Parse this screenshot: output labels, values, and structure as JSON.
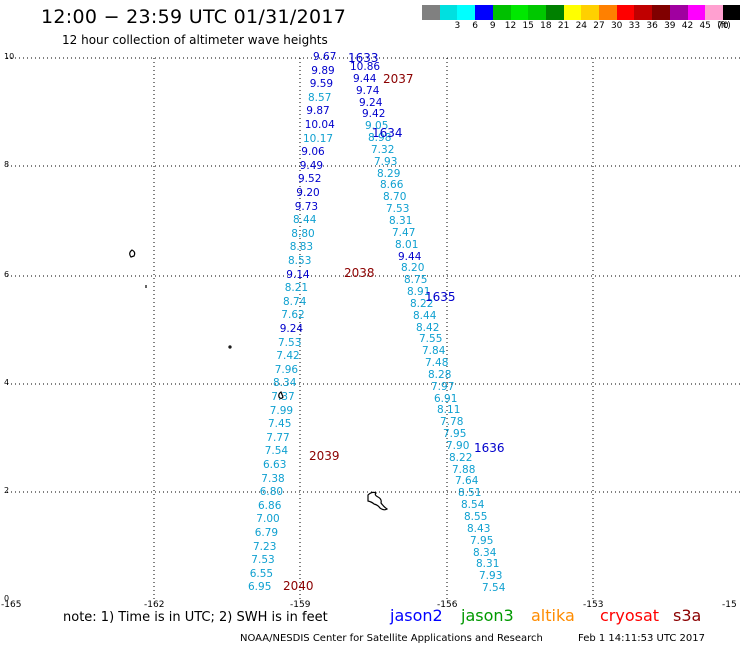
{
  "header": {
    "title": "12:00 − 23:59 UTC 01/31/2017",
    "subtitle": "12 hour collection of altimeter wave heights"
  },
  "colorbar": {
    "unit": "(ft)",
    "bins": [
      {
        "label": "",
        "color": "#808080"
      },
      {
        "label": "3",
        "color": "#00e0e0"
      },
      {
        "label": "6",
        "color": "#00ffff"
      },
      {
        "label": "9",
        "color": "#0000ff"
      },
      {
        "label": "12",
        "color": "#00c000"
      },
      {
        "label": "15",
        "color": "#00e800"
      },
      {
        "label": "18",
        "color": "#00c800"
      },
      {
        "label": "21",
        "color": "#008000"
      },
      {
        "label": "24",
        "color": "#ffff00"
      },
      {
        "label": "27",
        "color": "#ffd000"
      },
      {
        "label": "30",
        "color": "#ff8000"
      },
      {
        "label": "33",
        "color": "#ff0000"
      },
      {
        "label": "36",
        "color": "#c00000"
      },
      {
        "label": "39",
        "color": "#800000"
      },
      {
        "label": "42",
        "color": "#a000a0"
      },
      {
        "label": "45",
        "color": "#ff00ff"
      },
      {
        "label": "70",
        "color": "#ffa0d0"
      },
      {
        "label": "",
        "color": "#000000"
      }
    ]
  },
  "axes": {
    "lat_ticks": [
      "10",
      "8",
      "6",
      "4",
      "2",
      "0"
    ],
    "lon_ticks": [
      "-165",
      "-162",
      "-159",
      "-156",
      "-153",
      "-15"
    ]
  },
  "passes": [
    {
      "label": "1633",
      "sat": "jason2"
    },
    {
      "label": "2037",
      "sat": "cryosat"
    },
    {
      "label": "1634",
      "sat": "jason2"
    },
    {
      "label": "2038",
      "sat": "cryosat"
    },
    {
      "label": "1635",
      "sat": "jason2"
    },
    {
      "label": "2039",
      "sat": "cryosat"
    },
    {
      "label": "1636",
      "sat": "jason2"
    },
    {
      "label": "2040",
      "sat": "cryosat"
    }
  ],
  "observations": [
    {
      "v": "9.67",
      "s": "j2"
    },
    {
      "v": "9.89",
      "s": "j2"
    },
    {
      "v": "9.59",
      "s": "j2"
    },
    {
      "v": "8.57",
      "s": "j3"
    },
    {
      "v": "9.87",
      "s": "j2"
    },
    {
      "v": "10.04",
      "s": "j2"
    },
    {
      "v": "10.17",
      "s": "j3"
    },
    {
      "v": "9.06",
      "s": "j2"
    },
    {
      "v": "9.49",
      "s": "j2"
    },
    {
      "v": "9.52",
      "s": "j2"
    },
    {
      "v": "9.20",
      "s": "j2"
    },
    {
      "v": "9.73",
      "s": "j2"
    },
    {
      "v": "8.44",
      "s": "j3"
    },
    {
      "v": "8.80",
      "s": "j3"
    },
    {
      "v": "8.83",
      "s": "j3"
    },
    {
      "v": "8.53",
      "s": "j3"
    },
    {
      "v": "9.14",
      "s": "j2"
    },
    {
      "v": "8.21",
      "s": "j3"
    },
    {
      "v": "8.74",
      "s": "j3"
    },
    {
      "v": "7.62",
      "s": "j3"
    },
    {
      "v": "9.24",
      "s": "j2"
    },
    {
      "v": "7.53",
      "s": "j3"
    },
    {
      "v": "7.42",
      "s": "j3"
    },
    {
      "v": "7.96",
      "s": "j3"
    },
    {
      "v": "8.34",
      "s": "j3"
    },
    {
      "v": "7.37",
      "s": "j3"
    },
    {
      "v": "7.99",
      "s": "j3"
    },
    {
      "v": "7.45",
      "s": "j3"
    },
    {
      "v": "7.77",
      "s": "j3"
    },
    {
      "v": "7.54",
      "s": "j3"
    },
    {
      "v": "6.63",
      "s": "j3"
    },
    {
      "v": "7.38",
      "s": "j3"
    },
    {
      "v": "6.80",
      "s": "j3"
    },
    {
      "v": "6.86",
      "s": "j3"
    },
    {
      "v": "7.00",
      "s": "j3"
    },
    {
      "v": "6.79",
      "s": "j3"
    },
    {
      "v": "7.23",
      "s": "j3"
    },
    {
      "v": "7.53",
      "s": "j3"
    },
    {
      "v": "6.55",
      "s": "j3"
    },
    {
      "v": "6.95",
      "s": "j3"
    },
    {
      "v": "10.86",
      "s": "j2"
    },
    {
      "v": "9.44",
      "s": "j2"
    },
    {
      "v": "9.74",
      "s": "j2"
    },
    {
      "v": "9.24",
      "s": "j2"
    },
    {
      "v": "9.42",
      "s": "j2"
    },
    {
      "v": "9.05",
      "s": "j3"
    },
    {
      "v": "8.98",
      "s": "j3"
    },
    {
      "v": "7.32",
      "s": "j3"
    },
    {
      "v": "7.93",
      "s": "j3"
    },
    {
      "v": "8.29",
      "s": "j3"
    },
    {
      "v": "8.66",
      "s": "j3"
    },
    {
      "v": "8.70",
      "s": "j3"
    },
    {
      "v": "7.53",
      "s": "j3"
    },
    {
      "v": "8.31",
      "s": "j3"
    },
    {
      "v": "7.47",
      "s": "j3"
    },
    {
      "v": "8.01",
      "s": "j3"
    },
    {
      "v": "9.44",
      "s": "j2"
    },
    {
      "v": "8.20",
      "s": "j3"
    },
    {
      "v": "8.75",
      "s": "j3"
    },
    {
      "v": "8.91",
      "s": "j3"
    },
    {
      "v": "8.22",
      "s": "j3"
    },
    {
      "v": "8.44",
      "s": "j3"
    },
    {
      "v": "8.42",
      "s": "j3"
    },
    {
      "v": "7.55",
      "s": "j3"
    },
    {
      "v": "7.84",
      "s": "j3"
    },
    {
      "v": "7.48",
      "s": "j3"
    },
    {
      "v": "8.28",
      "s": "j3"
    },
    {
      "v": "7.97",
      "s": "j3"
    },
    {
      "v": "6.91",
      "s": "j3"
    },
    {
      "v": "8.11",
      "s": "j3"
    },
    {
      "v": "7.78",
      "s": "j3"
    },
    {
      "v": "7.95",
      "s": "j3"
    },
    {
      "v": "7.90",
      "s": "j3"
    },
    {
      "v": "8.22",
      "s": "j3"
    },
    {
      "v": "7.88",
      "s": "j3"
    },
    {
      "v": "7.64",
      "s": "j3"
    },
    {
      "v": "8.51",
      "s": "j3"
    },
    {
      "v": "8.54",
      "s": "j3"
    },
    {
      "v": "8.55",
      "s": "j3"
    },
    {
      "v": "8.43",
      "s": "j3"
    },
    {
      "v": "7.95",
      "s": "j3"
    },
    {
      "v": "8.34",
      "s": "j3"
    },
    {
      "v": "8.31",
      "s": "j3"
    },
    {
      "v": "7.93",
      "s": "j3"
    },
    {
      "v": "7.54",
      "s": "j3"
    }
  ],
  "footer": {
    "note": "note:  1) Time is in UTC;  2) SWH is in feet",
    "satellites": [
      {
        "name": "jason2",
        "color": "#0000ff"
      },
      {
        "name": "jason3",
        "color": "#009900"
      },
      {
        "name": "altika",
        "color": "#ff8c00"
      },
      {
        "name": "cryosat",
        "color": "#ff0000"
      },
      {
        "name": "s3a",
        "color": "#8b0000"
      }
    ],
    "credit": "NOAA/NESDIS Center for Satellite Applications and Research",
    "timestamp": "Feb  1 14:11:53 UTC 2017"
  }
}
